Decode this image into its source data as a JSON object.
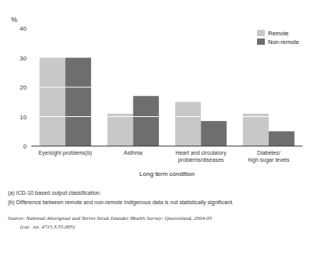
{
  "chart_data": {
    "type": "bar",
    "categories": [
      "Eye/sight problems(b)",
      "Asthma",
      "Heart and circulatory\nproblems/diseases",
      "Diabetes/\nhigh sugar levels"
    ],
    "series": [
      {
        "name": "Remote",
        "color": "#c8c8c8",
        "values": [
          30,
          11,
          15,
          11
        ]
      },
      {
        "name": "Non-remote",
        "color": "#6e6e6e",
        "values": [
          30,
          17,
          8.5,
          5
        ]
      }
    ],
    "ylim": [
      0,
      40
    ],
    "yticks": [
      0,
      10,
      20,
      30,
      40
    ],
    "y_label": "%",
    "x_label": "Long term condition",
    "legend": "upper right",
    "grid": false,
    "annotations": [
      "(a) ICD-10 based output classification.",
      "(b) Difference between remote and non-remote Indigenous data is not statistically significant.",
      "Source: National Aboriginal and Torres Strait Islander Health Survey: Queensland, 2004-05",
      "         (cat.  no. 4715.3.55.005)"
    ]
  }
}
